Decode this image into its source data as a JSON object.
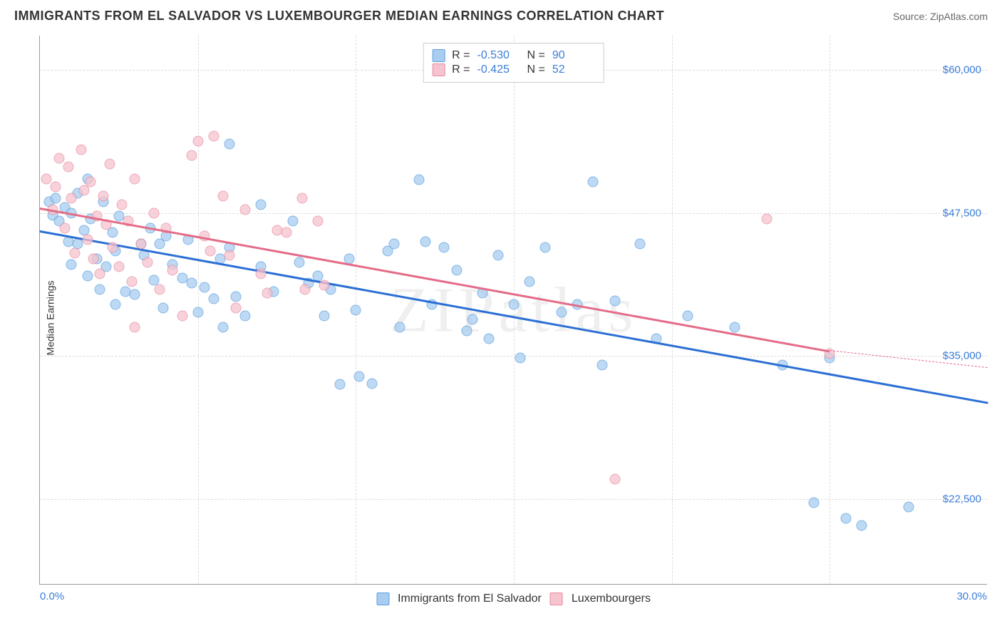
{
  "header": {
    "title": "IMMIGRANTS FROM EL SALVADOR VS LUXEMBOURGER MEDIAN EARNINGS CORRELATION CHART",
    "source_prefix": "Source: ",
    "source_name": "ZipAtlas.com"
  },
  "watermark": "ZIPatlas",
  "chart": {
    "type": "scatter",
    "ylabel": "Median Earnings",
    "xlim": [
      0,
      30
    ],
    "ylim": [
      15000,
      63000
    ],
    "y_ticks": [
      {
        "v": 60000,
        "label": "$60,000"
      },
      {
        "v": 47500,
        "label": "$47,500"
      },
      {
        "v": 35000,
        "label": "$35,000"
      },
      {
        "v": 22500,
        "label": "$22,500"
      }
    ],
    "x_ticks_label": {
      "min": "0.0%",
      "max": "30.0%"
    },
    "x_grid": [
      5,
      10,
      15,
      20,
      25
    ],
    "grid_color": "#dddddd",
    "background_color": "#ffffff",
    "point_radius": 7.5,
    "series": [
      {
        "name": "Immigrants from El Salvador",
        "color_fill": "#a9cdf0",
        "color_stroke": "#5a9fe0",
        "R": "-0.530",
        "N": "90",
        "trend": {
          "x1": 0,
          "y1": 46000,
          "x2": 30,
          "y2": 31000,
          "color": "#2b6fd4"
        },
        "points": [
          [
            0.3,
            48500
          ],
          [
            0.4,
            47300
          ],
          [
            0.5,
            48800
          ],
          [
            0.6,
            46800
          ],
          [
            0.8,
            48000
          ],
          [
            0.9,
            45000
          ],
          [
            1.0,
            43000
          ],
          [
            1.0,
            47500
          ],
          [
            1.2,
            49200
          ],
          [
            1.2,
            44800
          ],
          [
            1.4,
            46000
          ],
          [
            1.5,
            50500
          ],
          [
            1.5,
            42000
          ],
          [
            1.6,
            47000
          ],
          [
            1.8,
            43500
          ],
          [
            1.9,
            40800
          ],
          [
            2.0,
            48500
          ],
          [
            2.1,
            42800
          ],
          [
            2.3,
            45800
          ],
          [
            2.4,
            44200
          ],
          [
            2.5,
            47200
          ],
          [
            2.7,
            40600
          ],
          [
            2.4,
            39500
          ],
          [
            3.0,
            40400
          ],
          [
            3.2,
            44800
          ],
          [
            3.3,
            43800
          ],
          [
            3.5,
            46200
          ],
          [
            3.6,
            41600
          ],
          [
            3.8,
            44800
          ],
          [
            3.9,
            39200
          ],
          [
            4.0,
            45500
          ],
          [
            4.2,
            43000
          ],
          [
            4.5,
            41800
          ],
          [
            4.7,
            45200
          ],
          [
            4.8,
            41400
          ],
          [
            5.0,
            38800
          ],
          [
            5.2,
            41000
          ],
          [
            5.5,
            40000
          ],
          [
            5.7,
            43500
          ],
          [
            5.8,
            37500
          ],
          [
            6.0,
            53500
          ],
          [
            6.0,
            44500
          ],
          [
            6.2,
            40200
          ],
          [
            6.5,
            38500
          ],
          [
            7.0,
            48200
          ],
          [
            7.0,
            42800
          ],
          [
            7.4,
            40600
          ],
          [
            8.0,
            46800
          ],
          [
            8.2,
            43200
          ],
          [
            8.5,
            41400
          ],
          [
            8.8,
            42000
          ],
          [
            9.0,
            38500
          ],
          [
            9.2,
            40800
          ],
          [
            9.5,
            32500
          ],
          [
            9.8,
            43500
          ],
          [
            10.0,
            39000
          ],
          [
            10.1,
            33200
          ],
          [
            10.5,
            32600
          ],
          [
            11.0,
            44200
          ],
          [
            11.2,
            44800
          ],
          [
            11.4,
            37500
          ],
          [
            12.0,
            50400
          ],
          [
            12.2,
            45000
          ],
          [
            12.4,
            39500
          ],
          [
            12.8,
            44500
          ],
          [
            13.2,
            42500
          ],
          [
            13.5,
            37200
          ],
          [
            13.7,
            38200
          ],
          [
            14.0,
            40500
          ],
          [
            14.2,
            36500
          ],
          [
            14.5,
            43800
          ],
          [
            15.0,
            39500
          ],
          [
            15.2,
            34800
          ],
          [
            15.5,
            41500
          ],
          [
            16.0,
            44500
          ],
          [
            16.5,
            38800
          ],
          [
            17.0,
            39500
          ],
          [
            17.5,
            50200
          ],
          [
            17.8,
            34200
          ],
          [
            18.2,
            39800
          ],
          [
            19.0,
            44800
          ],
          [
            19.5,
            36500
          ],
          [
            20.5,
            38500
          ],
          [
            22.0,
            37500
          ],
          [
            23.5,
            34200
          ],
          [
            24.5,
            22200
          ],
          [
            25.0,
            34800
          ],
          [
            25.5,
            20800
          ],
          [
            26.0,
            20200
          ],
          [
            27.5,
            21800
          ]
        ]
      },
      {
        "name": "Luxembourgers",
        "color_fill": "#f6c4ce",
        "color_stroke": "#e98ba0",
        "R": "-0.425",
        "N": "52",
        "trend": {
          "x1": 0,
          "y1": 48000,
          "x2": 25,
          "y2": 35500,
          "color": "#e46c88",
          "dash_to_x": 30,
          "dash_to_y": 34000
        },
        "points": [
          [
            0.2,
            50500
          ],
          [
            0.4,
            47800
          ],
          [
            0.5,
            49800
          ],
          [
            0.6,
            52300
          ],
          [
            0.8,
            46200
          ],
          [
            0.9,
            51500
          ],
          [
            1.0,
            48800
          ],
          [
            1.1,
            44000
          ],
          [
            1.3,
            53000
          ],
          [
            1.4,
            49500
          ],
          [
            1.5,
            45200
          ],
          [
            1.6,
            50200
          ],
          [
            1.7,
            43500
          ],
          [
            1.8,
            47200
          ],
          [
            1.9,
            42200
          ],
          [
            2.0,
            49000
          ],
          [
            2.1,
            46500
          ],
          [
            2.2,
            51800
          ],
          [
            2.3,
            44500
          ],
          [
            2.5,
            42800
          ],
          [
            2.6,
            48200
          ],
          [
            2.8,
            46800
          ],
          [
            2.9,
            41500
          ],
          [
            3.0,
            50500
          ],
          [
            3.0,
            37500
          ],
          [
            3.2,
            44800
          ],
          [
            3.4,
            43200
          ],
          [
            3.6,
            47500
          ],
          [
            3.8,
            40800
          ],
          [
            4.0,
            46200
          ],
          [
            4.2,
            42500
          ],
          [
            4.5,
            38500
          ],
          [
            4.8,
            52500
          ],
          [
            5.0,
            53800
          ],
          [
            5.2,
            45500
          ],
          [
            5.4,
            44200
          ],
          [
            5.5,
            54200
          ],
          [
            5.8,
            49000
          ],
          [
            6.0,
            43800
          ],
          [
            6.2,
            39200
          ],
          [
            6.5,
            47800
          ],
          [
            7.0,
            42200
          ],
          [
            7.2,
            40500
          ],
          [
            7.5,
            46000
          ],
          [
            7.8,
            45800
          ],
          [
            8.3,
            48800
          ],
          [
            8.4,
            40800
          ],
          [
            8.8,
            46800
          ],
          [
            9.0,
            41200
          ],
          [
            18.2,
            24200
          ],
          [
            23.0,
            47000
          ],
          [
            25.0,
            35200
          ]
        ]
      }
    ]
  },
  "legend_top": {
    "R_label": "R =",
    "N_label": "N ="
  },
  "legend_bottom": {
    "items": [
      "Immigrants from El Salvador",
      "Luxembourgers"
    ]
  }
}
